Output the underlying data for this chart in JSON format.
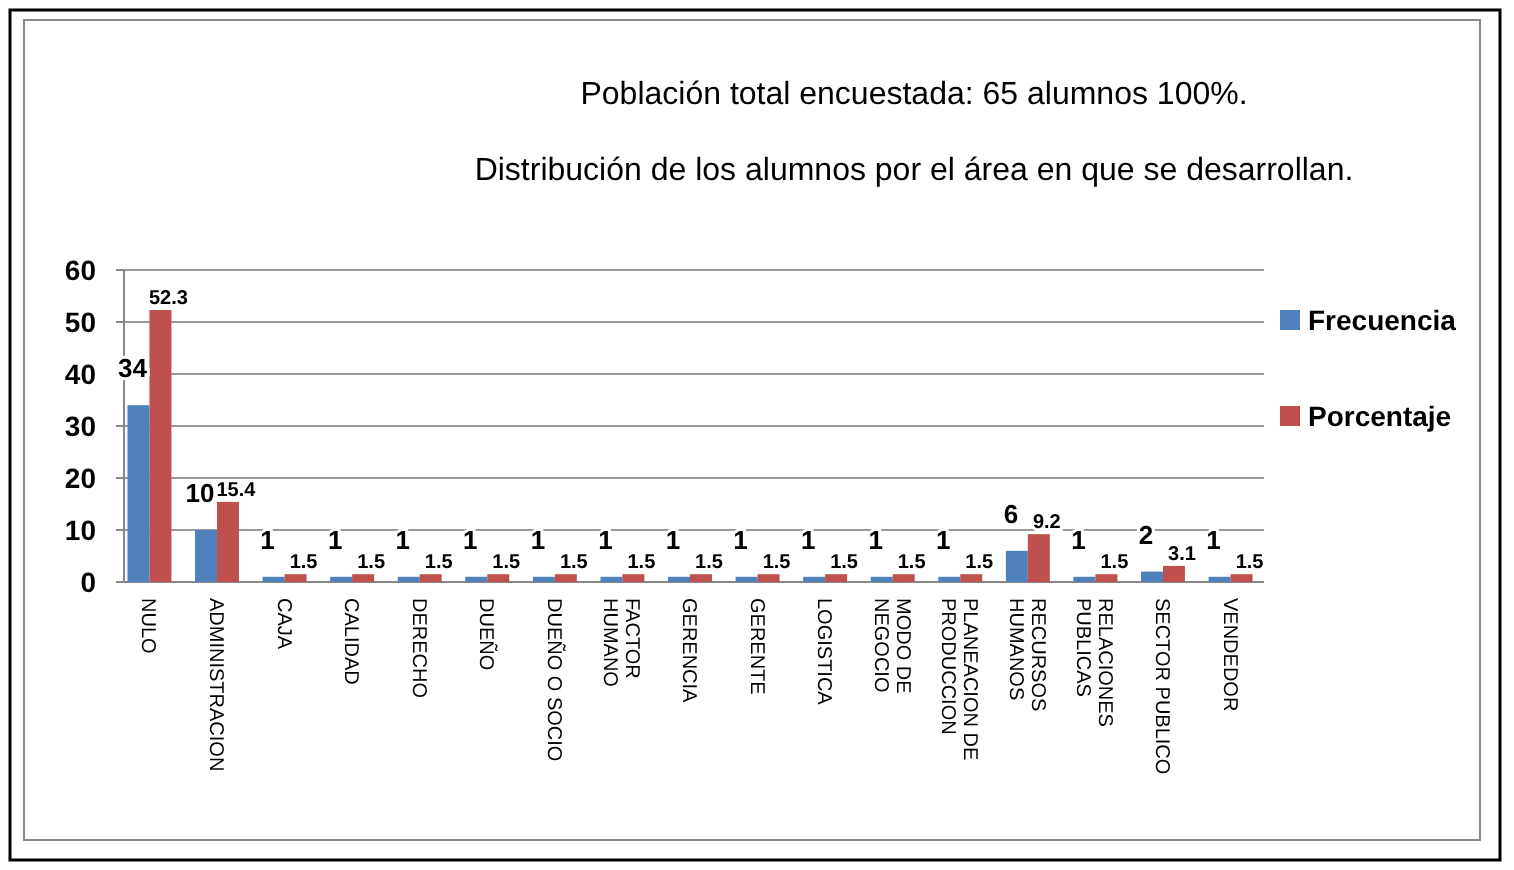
{
  "chart_data": {
    "type": "bar",
    "title": "Población total encuestada: 65 alumnos 100%.",
    "subtitle": "Distribución de los alumnos por el área en que se desarrollan.",
    "categories": [
      "NULO",
      "ADMINISTRACION",
      "CAJA",
      "CALIDAD",
      "DERECHO",
      "DUEÑO",
      "DUEÑO O SOCIO",
      "FACTOR\nHUMANO",
      "GERENCIA",
      "GERENTE",
      "LOGISTICA",
      "MODO DE\nNEGOCIO",
      "PLANEACION DE\nPRODUCCION",
      "RECURSOS\nHUMANOS",
      "RELACIONES\nPUBLICAS",
      "SECTOR PUBLICO",
      "VENDEDOR"
    ],
    "series": [
      {
        "name": "Frecuencia",
        "color": "#4f81bd",
        "values": [
          34,
          10,
          1,
          1,
          1,
          1,
          1,
          1,
          1,
          1,
          1,
          1,
          1,
          6,
          1,
          2,
          1
        ]
      },
      {
        "name": "Porcentaje",
        "color": "#c0504d",
        "values": [
          52.3,
          15.4,
          1.5,
          1.5,
          1.5,
          1.5,
          1.5,
          1.5,
          1.5,
          1.5,
          1.5,
          1.5,
          1.5,
          9.2,
          1.5,
          3.1,
          1.5
        ]
      }
    ],
    "ylim": [
      0,
      60
    ],
    "yticks": [
      0,
      10,
      20,
      30,
      40,
      50,
      60
    ],
    "grid": "y",
    "legend": "right",
    "data_labels": true
  }
}
